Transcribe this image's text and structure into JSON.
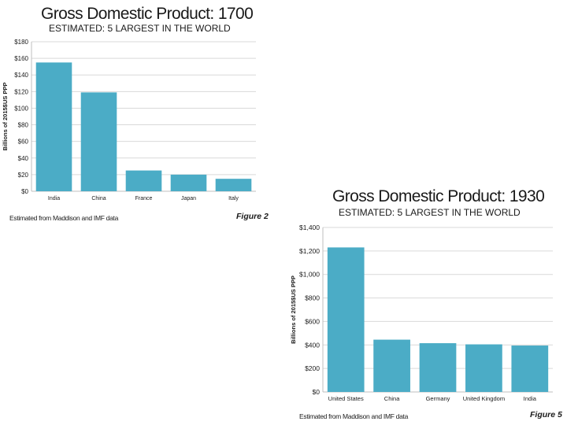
{
  "colors": {
    "bar": "#4BACC6",
    "grid": "#D9D9D9",
    "axis": "#BFBFBF",
    "text": "#1a1a1a"
  },
  "chart_data": [
    {
      "type": "bar",
      "title": "Gross Domestic Product: 1700",
      "subtitle": "ESTIMATED: 5 LARGEST IN THE WORLD",
      "ylabel": "Billions of 2015$US PPP",
      "xlabel": "",
      "categories": [
        "India",
        "China",
        "France",
        "Japan",
        "Italy"
      ],
      "values": [
        155,
        119,
        25,
        20,
        15
      ],
      "ylim": [
        0,
        180
      ],
      "yticks": [
        0,
        20,
        40,
        60,
        80,
        100,
        120,
        140,
        160,
        180
      ],
      "ytick_labels": [
        "$0",
        "$20",
        "$40",
        "$60",
        "$80",
        "$100",
        "$120",
        "$140",
        "$160",
        "$180"
      ],
      "grid": true,
      "source": "Estimated from Maddison and IMF data",
      "figure_label": "Figure 2"
    },
    {
      "type": "bar",
      "title": "Gross Domestic Product: 1930",
      "subtitle": "ESTIMATED: 5 LARGEST IN THE WORLD",
      "ylabel": "Billions of 2015$US PPP",
      "xlabel": "",
      "categories": [
        "United States",
        "China",
        "Germany",
        "United Kingdom",
        "India"
      ],
      "values": [
        1230,
        445,
        415,
        405,
        395
      ],
      "ylim": [
        0,
        1400
      ],
      "yticks": [
        0,
        200,
        400,
        600,
        800,
        1000,
        1200,
        1400
      ],
      "ytick_labels": [
        "$0",
        "$200",
        "$400",
        "$600",
        "$800",
        "$1,000",
        "$1,200",
        "$1,400"
      ],
      "grid": true,
      "source": "Estimated from Maddison and IMF data",
      "figure_label": "Figure 5"
    }
  ]
}
